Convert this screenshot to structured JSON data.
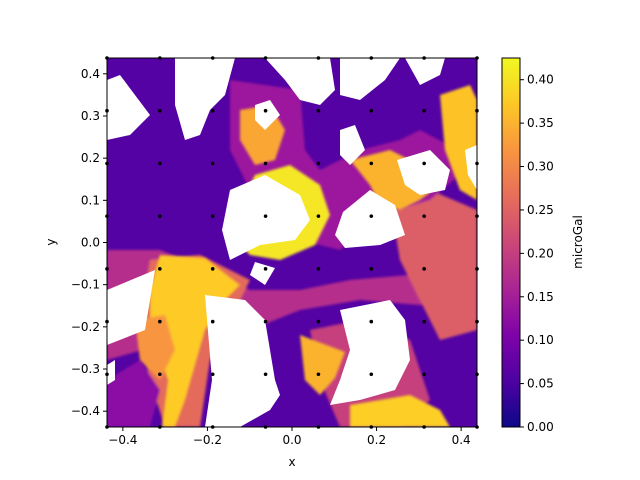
{
  "chart_data": {
    "type": "contourf",
    "xlabel": "x",
    "ylabel": "y",
    "xlim": [
      -0.4375,
      0.4375
    ],
    "ylim": [
      -0.4375,
      0.4375
    ],
    "xticks": [
      -0.4,
      -0.2,
      0.0,
      0.2,
      0.4
    ],
    "xtick_labels": [
      "−0.4",
      "−0.2",
      "0.0",
      "0.2",
      "0.4"
    ],
    "yticks": [
      -0.4,
      -0.3,
      -0.2,
      -0.1,
      0.0,
      0.1,
      0.2,
      0.3,
      0.4
    ],
    "ytick_labels": [
      "−0.4",
      "−0.3",
      "−0.2",
      "−0.1",
      "0.0",
      "0.1",
      "0.2",
      "0.3",
      "0.4"
    ],
    "colormap": "plasma",
    "colorbar": {
      "label": "microGal",
      "range": [
        0.0,
        0.425
      ],
      "ticks": [
        0.0,
        0.05,
        0.1,
        0.15,
        0.2,
        0.25,
        0.3,
        0.35,
        0.4
      ],
      "tick_labels": [
        "0.00",
        "0.05",
        "0.10",
        "0.15",
        "0.20",
        "0.25",
        "0.30",
        "0.35",
        "0.40"
      ]
    },
    "grid_points": {
      "x": [
        -0.4375,
        -0.3125,
        -0.1875,
        -0.0625,
        0.0625,
        0.1875,
        0.3125,
        0.4375
      ],
      "y": [
        -0.4375,
        -0.3125,
        -0.1875,
        -0.0625,
        0.0625,
        0.1875,
        0.3125,
        0.4375
      ]
    },
    "grid": false
  }
}
